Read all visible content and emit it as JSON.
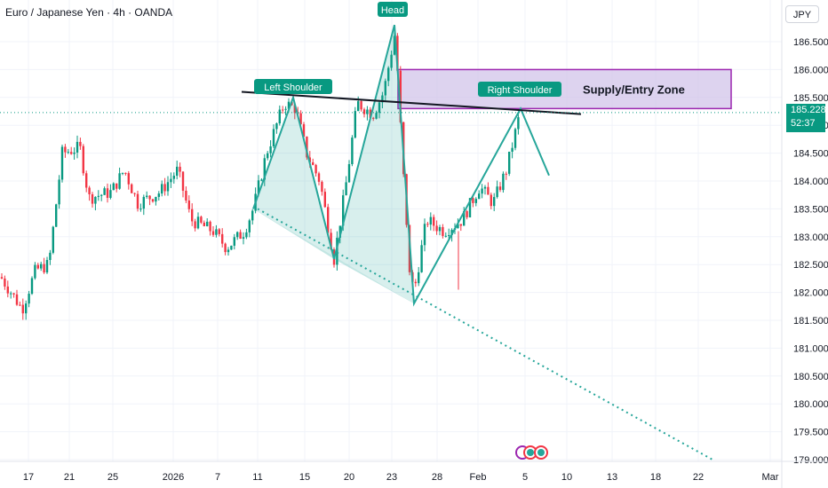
{
  "header": {
    "title": "Euro / Japanese Yen · 4h · OANDA",
    "currency_label": "JPY"
  },
  "price_tag": {
    "price": "185.228",
    "countdown": "52:37"
  },
  "colors": {
    "up": "#089981",
    "down": "#f23645",
    "pattern": "#26a69a",
    "zone_fill": "#d1c4e9",
    "zone_border": "#9c27b0",
    "neckline": "#131722"
  },
  "annotations": {
    "left_shoulder": "Left Shoulder",
    "head": "Head",
    "right_shoulder": "Right Shoulder",
    "zone_label": "Supply/Entry Zone"
  },
  "chart_data": {
    "type": "candlestick",
    "ylim": [
      179.0,
      186.8
    ],
    "y_ticks": [
      "186.500",
      "186.000",
      "185.500",
      "185.000",
      "184.500",
      "184.000",
      "183.500",
      "183.000",
      "182.500",
      "182.000",
      "181.500",
      "181.000",
      "180.500",
      "180.000",
      "179.500",
      "179.000"
    ],
    "x_ticks": [
      "17",
      "21",
      "25",
      "2026",
      "7",
      "11",
      "15",
      "20",
      "23",
      "28",
      "Feb",
      "5",
      "10",
      "13",
      "18",
      "22",
      "Mar"
    ],
    "current_price": 185.228,
    "price_path": [
      [
        0,
        182.3
      ],
      [
        25,
        181.7
      ],
      [
        40,
        182.4
      ],
      [
        55,
        182.5
      ],
      [
        70,
        184.5
      ],
      [
        90,
        184.6
      ],
      [
        100,
        183.7
      ],
      [
        125,
        183.8
      ],
      [
        140,
        184.2
      ],
      [
        155,
        183.6
      ],
      [
        180,
        183.8
      ],
      [
        200,
        184.2
      ],
      [
        215,
        183.3
      ],
      [
        240,
        183.1
      ],
      [
        255,
        182.8
      ],
      [
        275,
        183.1
      ],
      [
        285,
        183.5
      ],
      [
        300,
        184.5
      ],
      [
        320,
        185.4
      ],
      [
        333,
        185.3
      ],
      [
        345,
        184.5
      ],
      [
        360,
        184.0
      ],
      [
        376,
        182.6
      ],
      [
        390,
        184.0
      ],
      [
        402,
        185.4
      ],
      [
        420,
        185.2
      ],
      [
        432,
        185.6
      ],
      [
        445,
        186.7
      ],
      [
        450,
        185.2
      ],
      [
        460,
        182.5
      ],
      [
        466,
        182.0
      ],
      [
        480,
        183.3
      ],
      [
        500,
        183.1
      ],
      [
        520,
        183.3
      ],
      [
        540,
        183.9
      ],
      [
        555,
        183.6
      ],
      [
        570,
        184.2
      ],
      [
        585,
        185.2
      ]
    ],
    "pattern_points": [
      [
        285,
        183.5
      ],
      [
        330,
        185.5
      ],
      [
        376,
        182.6
      ],
      [
        444,
        186.8
      ],
      [
        466,
        181.8
      ],
      [
        586,
        185.3
      ],
      [
        618,
        184.1
      ]
    ],
    "neckline": [
      [
        272,
        185.6
      ],
      [
        654,
        185.2
      ]
    ],
    "trendline": [
      [
        290,
        183.5
      ],
      [
        802,
        179.0
      ]
    ],
    "zone": {
      "x_start": 448,
      "x_end": 823,
      "top": 186.0,
      "bottom": 185.3
    }
  }
}
